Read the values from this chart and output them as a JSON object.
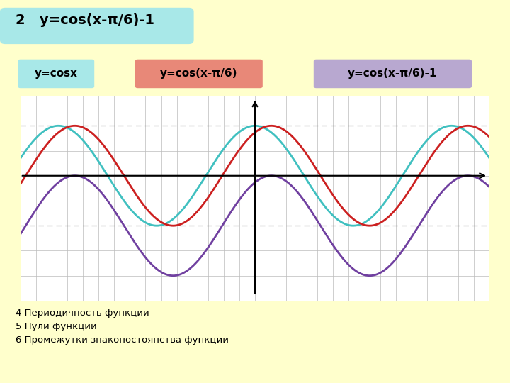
{
  "title": "2   y=cos(x-π/6)-1",
  "bg_color": "#FFFFCC",
  "grid_bg_color": "#FFFFFF",
  "curve1_color": "#40C0C0",
  "curve2_color": "#CC2020",
  "curve3_color": "#7040A0",
  "legend1_text": "y=cosx",
  "legend2_text": "y=cos(x-π/6)",
  "legend3_text": "y=cos(x-π/6)-1",
  "legend1_bg": "#A8E8E8",
  "legend2_bg": "#E88878",
  "legend3_bg": "#B8A8D0",
  "text_bottom": "4 Периодичность функции\n5 Нули функции\n6 Промежутки знакопостоянства функции",
  "xmin": -7.5,
  "xmax": 7.5,
  "ymin": -2.4,
  "ymax": 1.6,
  "dashed_y1": 1.0,
  "dashed_y2": -1.0,
  "grid_step_x": 0.5,
  "grid_step_y": 0.5
}
